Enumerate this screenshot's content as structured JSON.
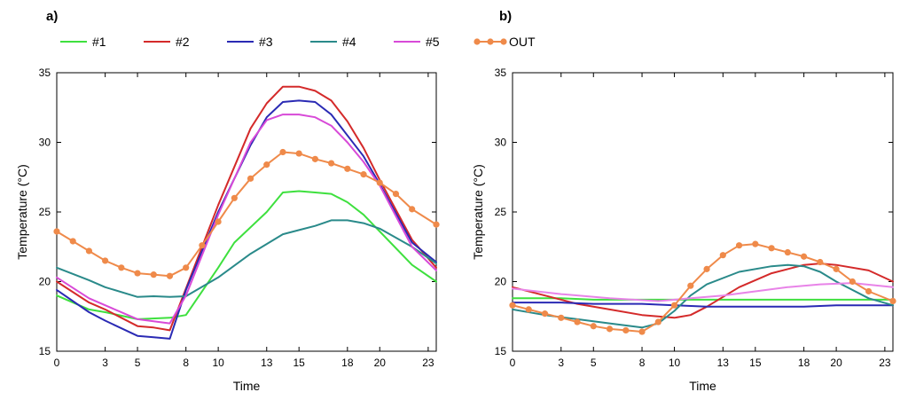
{
  "legend": [
    {
      "name": "#1",
      "color": "#3ee03e",
      "marker": false
    },
    {
      "name": "#2",
      "color": "#d42a2a",
      "marker": false
    },
    {
      "name": "#3",
      "color": "#2a2ab4",
      "marker": false
    },
    {
      "name": "#4",
      "color": "#2a8a8a",
      "marker": false
    },
    {
      "name": "#5",
      "color": "#d84ad8",
      "marker": false
    },
    {
      "name": "OUT",
      "color": "#ef8a4a",
      "marker": true
    }
  ],
  "chart_data": [
    {
      "type": "line",
      "panel_label": "a)",
      "xlabel": "Time",
      "ylabel": "Temperature (°C)",
      "xlim": [
        0,
        23.5
      ],
      "ylim": [
        15,
        35
      ],
      "xticks": [
        0,
        3,
        5,
        8,
        10,
        13,
        15,
        18,
        20,
        23
      ],
      "yticks": [
        15,
        20,
        25,
        30,
        35
      ],
      "series": [
        {
          "name": "#1",
          "color": "#3ee03e",
          "marker": false,
          "x": [
            0,
            2,
            3,
            5,
            7,
            8,
            10,
            11,
            13,
            14,
            15,
            16,
            17,
            18,
            19,
            20,
            22,
            23.5
          ],
          "y": [
            19.0,
            18.0,
            17.8,
            17.3,
            17.4,
            17.6,
            21.0,
            22.8,
            25.0,
            26.4,
            26.5,
            26.4,
            26.3,
            25.7,
            24.8,
            23.6,
            21.2,
            20.0
          ]
        },
        {
          "name": "#2",
          "color": "#d42a2a",
          "marker": false,
          "x": [
            0,
            2,
            3,
            5,
            6,
            7,
            8,
            10,
            12,
            13,
            14,
            15,
            16,
            17,
            18,
            19,
            20,
            22,
            23.5
          ],
          "y": [
            20.0,
            18.5,
            18.0,
            16.8,
            16.7,
            16.5,
            19.5,
            25.5,
            31.0,
            32.8,
            34.0,
            34.0,
            33.7,
            33.0,
            31.5,
            29.6,
            27.3,
            23.0,
            21.0
          ]
        },
        {
          "name": "#3",
          "color": "#2a2ab4",
          "marker": false,
          "x": [
            0,
            2,
            3,
            5,
            6,
            7,
            8,
            10,
            12,
            13,
            14,
            15,
            16,
            17,
            18,
            19,
            20,
            22,
            23.5
          ],
          "y": [
            19.4,
            17.8,
            17.2,
            16.1,
            16.0,
            15.9,
            19.4,
            25.0,
            29.8,
            31.8,
            32.9,
            33.0,
            32.9,
            32.0,
            30.5,
            29.0,
            27.0,
            22.8,
            21.4
          ]
        },
        {
          "name": "#4",
          "color": "#2a8a8a",
          "marker": false,
          "x": [
            0,
            2,
            3,
            5,
            6,
            7,
            8,
            10,
            12,
            14,
            15,
            16,
            17,
            18,
            19,
            20,
            22,
            23.5
          ],
          "y": [
            21.0,
            20.1,
            19.6,
            18.9,
            18.95,
            18.9,
            18.95,
            20.3,
            22.0,
            23.4,
            23.7,
            24.0,
            24.4,
            24.4,
            24.2,
            23.8,
            22.5,
            21.3
          ]
        },
        {
          "name": "#5",
          "color": "#d84ad8",
          "marker": false,
          "x": [
            0,
            2,
            3,
            5,
            6,
            7,
            8,
            10,
            12,
            13,
            14,
            15,
            16,
            17,
            18,
            19,
            20,
            22,
            23.5
          ],
          "y": [
            20.3,
            18.8,
            18.3,
            17.3,
            17.15,
            17.0,
            19.0,
            24.8,
            30.0,
            31.6,
            32.0,
            32.0,
            31.8,
            31.2,
            30.0,
            28.6,
            26.9,
            22.5,
            20.8
          ]
        },
        {
          "name": "OUT",
          "color": "#ef8a4a",
          "marker": true,
          "x": [
            0,
            1,
            2,
            3,
            4,
            5,
            6,
            7,
            8,
            9,
            10,
            11,
            12,
            13,
            14,
            15,
            16,
            17,
            18,
            19,
            20,
            21,
            22,
            23.5
          ],
          "y": [
            23.6,
            22.9,
            22.2,
            21.5,
            21.0,
            20.6,
            20.5,
            20.4,
            21.0,
            22.6,
            24.3,
            26.0,
            27.4,
            28.4,
            29.3,
            29.2,
            28.8,
            28.5,
            28.1,
            27.7,
            27.1,
            26.3,
            25.2,
            24.1
          ]
        }
      ]
    },
    {
      "type": "line",
      "panel_label": "b)",
      "xlabel": "Time",
      "ylabel": "Temperature (°C)",
      "xlim": [
        0,
        23.5
      ],
      "ylim": [
        15,
        35
      ],
      "xticks": [
        0,
        3,
        5,
        8,
        10,
        13,
        15,
        18,
        20,
        23
      ],
      "yticks": [
        15,
        20,
        25,
        30,
        35
      ],
      "series": [
        {
          "name": "#1",
          "color": "#3ee03e",
          "marker": false,
          "x": [
            0,
            3,
            5,
            8,
            10,
            12,
            14,
            16,
            18,
            20,
            22,
            23.5
          ],
          "y": [
            18.8,
            18.8,
            18.7,
            18.7,
            18.7,
            18.7,
            18.7,
            18.7,
            18.7,
            18.7,
            18.7,
            18.7
          ]
        },
        {
          "name": "#2",
          "color": "#d42a2a",
          "marker": false,
          "x": [
            0,
            2,
            4,
            6,
            8,
            10,
            11,
            12,
            14,
            16,
            18,
            19,
            20,
            22,
            23.5
          ],
          "y": [
            19.6,
            19.0,
            18.4,
            18.0,
            17.6,
            17.4,
            17.6,
            18.2,
            19.6,
            20.6,
            21.2,
            21.3,
            21.2,
            20.8,
            20.0
          ]
        },
        {
          "name": "#3",
          "color": "#2a2ab4",
          "marker": false,
          "x": [
            0,
            3,
            5,
            8,
            10,
            12,
            14,
            16,
            18,
            20,
            22,
            23.5
          ],
          "y": [
            18.5,
            18.5,
            18.4,
            18.4,
            18.3,
            18.2,
            18.2,
            18.2,
            18.2,
            18.3,
            18.3,
            18.3
          ]
        },
        {
          "name": "#4",
          "color": "#2a8a8a",
          "marker": false,
          "x": [
            0,
            2,
            4,
            6,
            8,
            9,
            10,
            11,
            12,
            14,
            16,
            17,
            18,
            19,
            20,
            22,
            23.5
          ],
          "y": [
            18.0,
            17.6,
            17.3,
            17.0,
            16.7,
            17.0,
            17.9,
            19.0,
            19.8,
            20.7,
            21.1,
            21.2,
            21.1,
            20.7,
            20.0,
            18.8,
            18.3
          ]
        },
        {
          "name": "#5",
          "color": "#e883e8",
          "marker": false,
          "x": [
            0,
            3,
            6,
            9,
            11,
            13,
            15,
            17,
            19,
            21,
            23.5
          ],
          "y": [
            19.5,
            19.1,
            18.8,
            18.6,
            18.8,
            19.0,
            19.3,
            19.6,
            19.8,
            19.9,
            19.6
          ]
        },
        {
          "name": "OUT",
          "color": "#ef8a4a",
          "marker": true,
          "x": [
            0,
            1,
            2,
            3,
            4,
            5,
            6,
            7,
            8,
            9,
            10,
            11,
            12,
            13,
            14,
            15,
            16,
            17,
            18,
            19,
            20,
            21,
            22,
            23.5
          ],
          "y": [
            18.3,
            18.0,
            17.7,
            17.4,
            17.1,
            16.8,
            16.6,
            16.5,
            16.4,
            17.1,
            18.3,
            19.7,
            20.9,
            21.9,
            22.6,
            22.7,
            22.4,
            22.1,
            21.8,
            21.4,
            20.9,
            20.0,
            19.3,
            18.6
          ]
        }
      ]
    }
  ]
}
